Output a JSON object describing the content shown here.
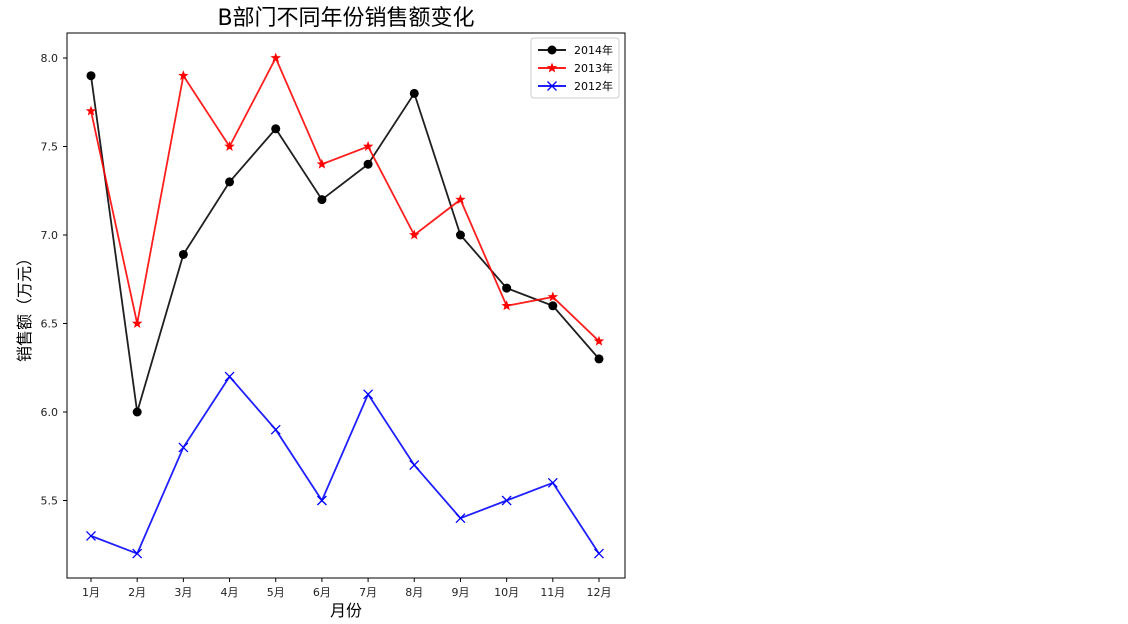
{
  "chart_data": {
    "type": "line",
    "title": "B部门不同年份销售额变化",
    "xlabel": "月份",
    "ylabel": "销售额（万元）",
    "categories": [
      "1月",
      "2月",
      "3月",
      "4月",
      "5月",
      "6月",
      "7月",
      "8月",
      "9月",
      "10月",
      "11月",
      "12月"
    ],
    "yticks": [
      5.5,
      6.0,
      6.5,
      7.0,
      7.5,
      8.0
    ],
    "ytick_labels": [
      "5.5",
      "6.0",
      "6.5",
      "7.0",
      "7.5",
      "8.0"
    ],
    "ylim": [
      5.07,
      8.13
    ],
    "grid": false,
    "legend_position": "upper right",
    "series": [
      {
        "name": "2014年",
        "color": "#000000",
        "marker": "circle",
        "values": [
          7.9,
          6.0,
          6.89,
          7.3,
          7.6,
          7.2,
          7.4,
          7.8,
          7.0,
          6.7,
          6.6,
          6.3
        ]
      },
      {
        "name": "2013年",
        "color": "#ff0000",
        "marker": "star",
        "values": [
          7.7,
          6.5,
          7.9,
          7.5,
          8.0,
          7.4,
          7.5,
          7.0,
          7.2,
          6.6,
          6.65,
          6.4
        ]
      },
      {
        "name": "2012年",
        "color": "#0000ff",
        "marker": "x",
        "values": [
          5.3,
          5.2,
          5.8,
          6.2,
          5.9,
          5.5,
          6.1,
          5.7,
          5.4,
          5.5,
          5.6,
          5.2
        ]
      }
    ]
  }
}
